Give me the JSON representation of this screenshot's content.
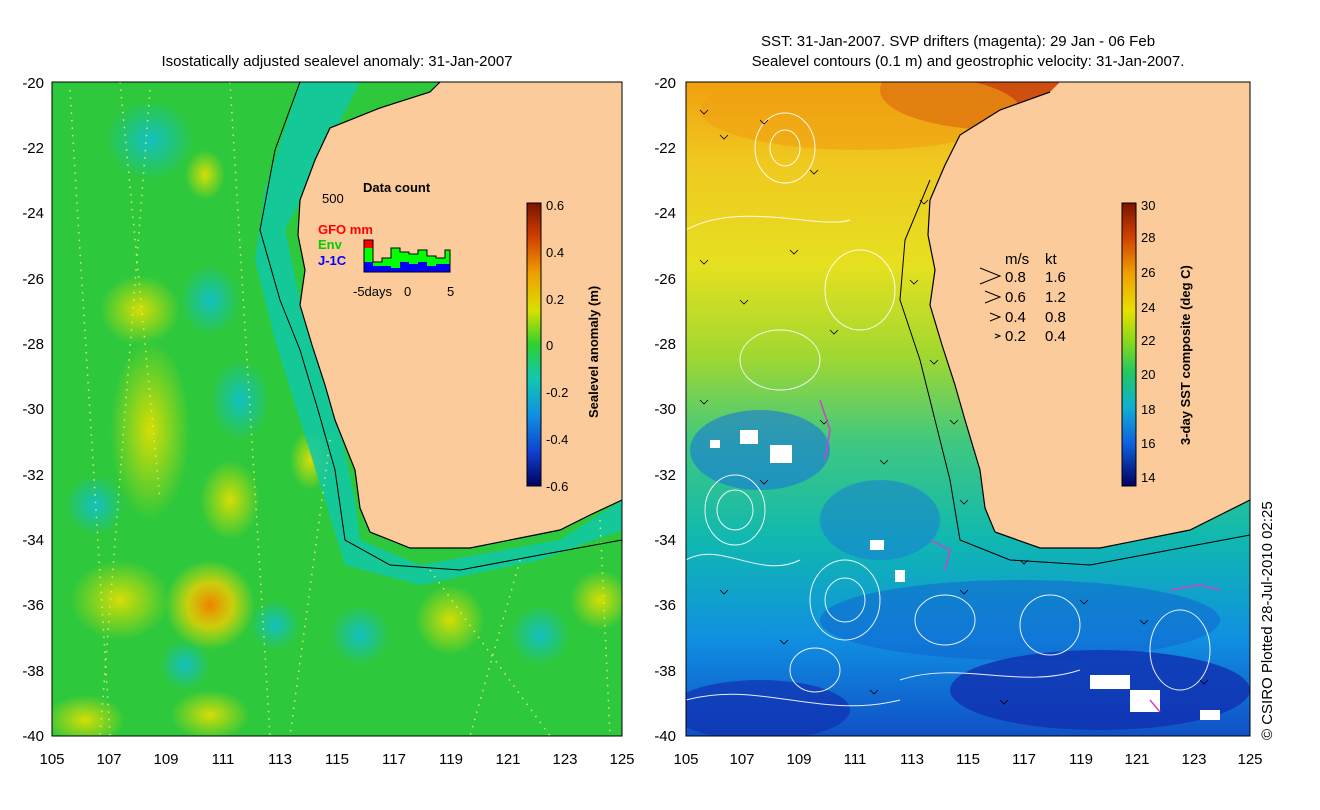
{
  "left_panel": {
    "title": "Isostatically adjusted sealevel anomaly: 31-Jan-2007",
    "y_ticks": [
      "-20",
      "-22",
      "-24",
      "-26",
      "-28",
      "-30",
      "-32",
      "-34",
      "-36",
      "-38",
      "-40"
    ],
    "x_ticks": [
      "105",
      "107",
      "109",
      "111",
      "113",
      "115",
      "117",
      "119",
      "121",
      "123",
      "125"
    ],
    "inset": {
      "title": "Data count",
      "max_label": "500",
      "legend": [
        {
          "label": "GFO mm",
          "color": "#ff0000"
        },
        {
          "label": "Env",
          "color": "#00ff00"
        },
        {
          "label": "J-1C",
          "color": "#0000ff"
        }
      ],
      "x_labels": [
        "-5days",
        "0",
        "5"
      ]
    },
    "colorbar": {
      "label": "Sealevel anomaly (m)",
      "ticks": [
        "0.6",
        "0.4",
        "0.2",
        "0",
        "-0.2",
        "-0.4",
        "-0.6"
      ]
    }
  },
  "right_panel": {
    "title_line1": "SST: 31-Jan-2007. SVP drifters (magenta): 29 Jan - 06 Feb",
    "title_line2": "Sealevel contours (0.1 m) and geostrophic velocity: 31-Jan-2007.",
    "y_ticks": [
      "-20",
      "-22",
      "-24",
      "-26",
      "-28",
      "-30",
      "-32",
      "-34",
      "-36",
      "-38",
      "-40"
    ],
    "x_ticks": [
      "105",
      "107",
      "109",
      "111",
      "113",
      "115",
      "117",
      "119",
      "121",
      "123",
      "125"
    ],
    "speed_legend": {
      "header_ms": "m/s",
      "header_kt": "kt",
      "rows": [
        {
          "ms": "0.8",
          "kt": "1.6"
        },
        {
          "ms": "0.6",
          "kt": "1.2"
        },
        {
          "ms": "0.4",
          "kt": "0.8"
        },
        {
          "ms": "0.2",
          "kt": "0.4"
        }
      ]
    },
    "colorbar": {
      "label": "3-day SST composite (deg C)",
      "ticks": [
        "30",
        "28",
        "26",
        "24",
        "22",
        "20",
        "18",
        "16",
        "14"
      ]
    }
  },
  "credit": "© CSIRO Plotted 28-Jul-2010 02:25",
  "colors": {
    "land": "#fbcb9b",
    "ocean_green": "#2ec83c",
    "shelf_cyan": "#10c8c0",
    "sst_yellow": "#e0e020",
    "sst_blue": "#1478e0"
  }
}
